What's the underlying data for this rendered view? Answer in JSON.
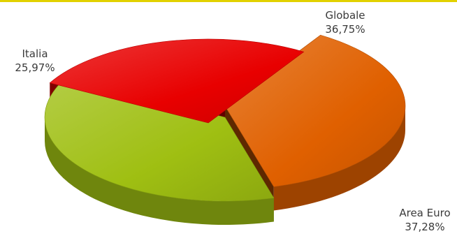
{
  "chart_data": {
    "type": "pie",
    "title": "",
    "slices": [
      {
        "label": "Globale",
        "value": 36.75,
        "display": "36,75%",
        "color": "#e06000"
      },
      {
        "label": "Area Euro",
        "value": 37.28,
        "display": "37,28%",
        "color": "#9fbf12"
      },
      {
        "label": "Italia",
        "value": 25.97,
        "display": "25,97%",
        "color": "#e80000"
      }
    ],
    "legend": "none",
    "style": "3d-exploded",
    "accent_color": "#e2d100"
  }
}
